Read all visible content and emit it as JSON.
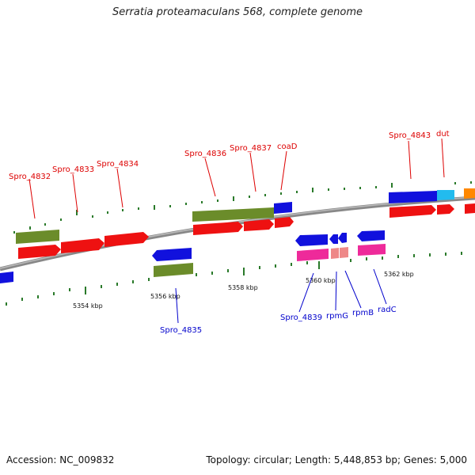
{
  "title": "Serratia proteamaculans 568, complete genome",
  "footer": {
    "accession": "Accession: NC_009832",
    "summary": "Topology: circular; Length: 5,448,853 bp; Genes: 5,000"
  },
  "axis": {
    "ticks": [
      "5354 kbp",
      "5356 kbp",
      "5358 kbp",
      "5360 kbp",
      "5362 kbp"
    ]
  },
  "colors": {
    "gene_forward": "#ee1111",
    "gene_reverse": "#1111dd",
    "cds_olive": "#6b8c2a",
    "rna_pink": "#ee2a9a",
    "rna_light": "#ee8888",
    "cyan": "#22bbee",
    "orange": "#ff8800",
    "backbone": "#888888",
    "tick_green": "#2a7a2a",
    "label_red": "#dd0000",
    "label_blue": "#0000cc"
  },
  "labels_forward": [
    "Spro_4832",
    "Spro_4833",
    "Spro_4834",
    "Spro_4836",
    "Spro_4837",
    "coaD",
    "Spro_4843",
    "dut"
  ],
  "labels_reverse": [
    "Spro_4835",
    "Spro_4839",
    "rpmG",
    "rpmB",
    "radC"
  ]
}
